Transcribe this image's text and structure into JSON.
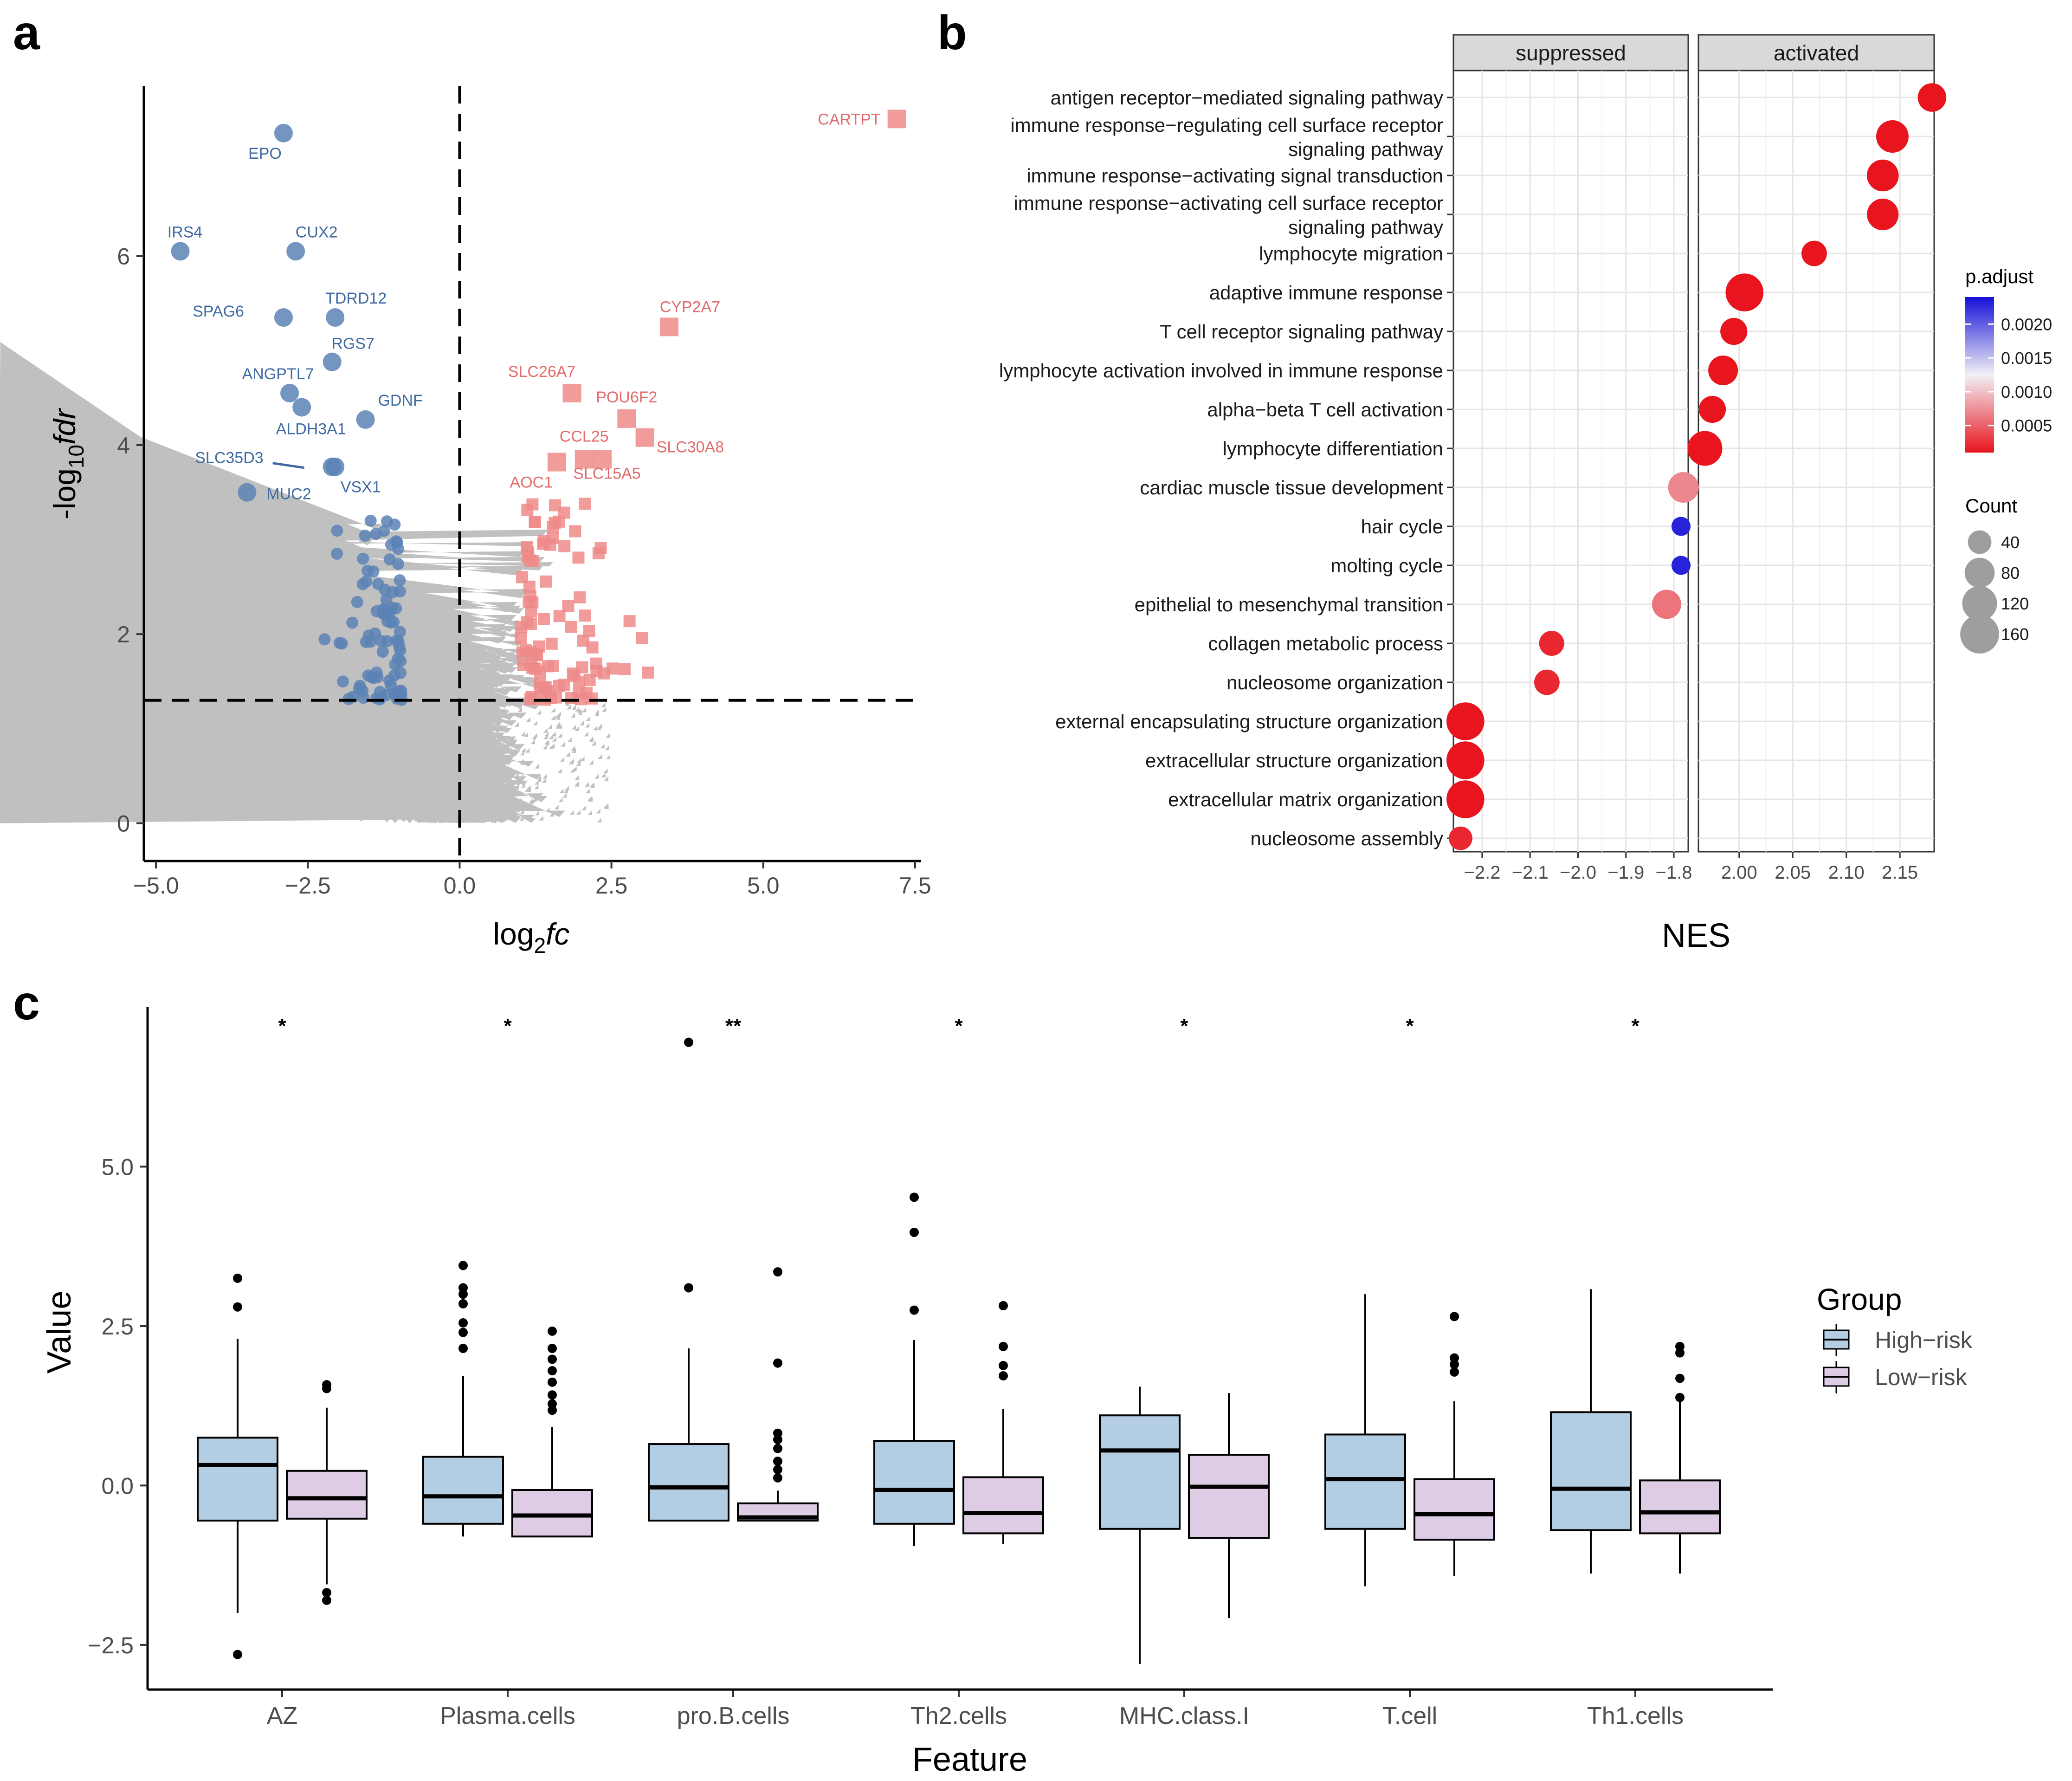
{
  "panels": {
    "a": "a",
    "b": "b",
    "c": "c"
  },
  "chart_data": [
    {
      "type": "scatter",
      "panel": "a",
      "title": "",
      "xlabel_base": "log",
      "xlabel_sub": "2",
      "xlabel_italic": "fc",
      "ylabel_prefix": "-log",
      "ylabel_sub": "10",
      "ylabel_italic": "fdr",
      "xlim": [
        -5.2,
        7.6
      ],
      "ylim": [
        -0.4,
        7.8
      ],
      "xticks": [
        -5.0,
        -2.5,
        0.0,
        2.5,
        5.0,
        7.5
      ],
      "xtick_labels": [
        "−5.0",
        "−2.5",
        "0.0",
        "2.5",
        "5.0",
        "7.5"
      ],
      "yticks": [
        0,
        2,
        4,
        6
      ],
      "ytick_labels": [
        "0",
        "2",
        "4",
        "6"
      ],
      "thresholds": {
        "fdr_line_y": 1.3,
        "fc_line_x": 0
      },
      "colors": {
        "down": "#5b83b5",
        "up": "#ef8a8a",
        "ns": "#c0c0c0"
      },
      "labeled_down": [
        {
          "label": "EPO",
          "x": -2.9,
          "y": 7.3
        },
        {
          "label": "IRS4",
          "x": -4.6,
          "y": 6.05
        },
        {
          "label": "CUX2",
          "x": -2.7,
          "y": 6.05
        },
        {
          "label": "SPAG6",
          "x": -2.9,
          "y": 5.35
        },
        {
          "label": "TDRD12",
          "x": -2.05,
          "y": 5.35
        },
        {
          "label": "RGS7",
          "x": -2.1,
          "y": 4.88
        },
        {
          "label": "ANGPTL7",
          "x": -2.8,
          "y": 4.55
        },
        {
          "label": "GDNF",
          "x": -1.55,
          "y": 4.27
        },
        {
          "label": "ALDH3A1",
          "x": -2.6,
          "y": 4.4
        },
        {
          "label": "SLC35D3",
          "x": -2.1,
          "y": 3.77
        },
        {
          "label": "VSX1",
          "x": -2.05,
          "y": 3.77
        },
        {
          "label": "MUC2",
          "x": -3.5,
          "y": 3.5
        }
      ],
      "labeled_up": [
        {
          "label": "CARTPT",
          "x": 7.2,
          "y": 7.45
        },
        {
          "label": "CYP2A7",
          "x": 3.45,
          "y": 5.25
        },
        {
          "label": "SLC26A7",
          "x": 1.85,
          "y": 4.55
        },
        {
          "label": "POU6F2",
          "x": 2.75,
          "y": 4.28
        },
        {
          "label": "CCL25",
          "x": 2.05,
          "y": 3.85
        },
        {
          "label": "SLC30A8",
          "x": 3.05,
          "y": 4.08
        },
        {
          "label": "AOC1",
          "x": 1.6,
          "y": 3.82
        },
        {
          "label": "SLC15A5",
          "x": 2.35,
          "y": 3.85
        }
      ]
    },
    {
      "type": "dot",
      "panel": "b",
      "xlabel": "NES",
      "facets": [
        {
          "name": "suppressed",
          "xlim": [
            -2.26,
            -1.77
          ],
          "ticks": [
            -2.2,
            -2.1,
            -2.0,
            -1.9,
            -1.8
          ],
          "tick_labels": [
            "−2.2",
            "−2.1",
            "−2.0",
            "−1.9",
            "−1.8"
          ]
        },
        {
          "name": "activated",
          "xlim": [
            1.962,
            2.182
          ],
          "ticks": [
            2.0,
            2.05,
            2.1,
            2.15
          ],
          "tick_labels": [
            "2.00",
            "2.05",
            "2.10",
            "2.15"
          ]
        }
      ],
      "terms": [
        {
          "label_lines": [
            "antigen receptor−mediated signaling pathway"
          ],
          "facet": "activated",
          "nes": 2.18,
          "count": 70,
          "padj": 0.0001
        },
        {
          "label_lines": [
            "immune response−regulating cell surface receptor",
            "signaling pathway"
          ],
          "facet": "activated",
          "nes": 2.143,
          "count": 100,
          "padj": 0.0001
        },
        {
          "label_lines": [
            "immune response−activating signal transduction"
          ],
          "facet": "activated",
          "nes": 2.134,
          "count": 95,
          "padj": 0.0001
        },
        {
          "label_lines": [
            "immune response−activating cell surface receptor",
            "signaling pathway"
          ],
          "facet": "activated",
          "nes": 2.134,
          "count": 93,
          "padj": 0.0001
        },
        {
          "label_lines": [
            "lymphocyte migration"
          ],
          "facet": "activated",
          "nes": 2.07,
          "count": 50,
          "padj": 0.0001
        },
        {
          "label_lines": [
            "adaptive immune response"
          ],
          "facet": "activated",
          "nes": 2.005,
          "count": 150,
          "padj": 0.0001
        },
        {
          "label_lines": [
            "T cell receptor signaling pathway"
          ],
          "facet": "activated",
          "nes": 1.995,
          "count": 60,
          "padj": 0.0001
        },
        {
          "label_lines": [
            "lymphocyte activation involved in immune response"
          ],
          "facet": "activated",
          "nes": 1.985,
          "count": 78,
          "padj": 0.0001
        },
        {
          "label_lines": [
            "alpha−beta T cell activation"
          ],
          "facet": "activated",
          "nes": 1.975,
          "count": 60,
          "padj": 0.0001
        },
        {
          "label_lines": [
            "lymphocyte differentiation"
          ],
          "facet": "activated",
          "nes": 1.968,
          "count": 120,
          "padj": 0.0001
        },
        {
          "label_lines": [
            "cardiac muscle tissue development"
          ],
          "facet": "suppressed",
          "nes": -1.78,
          "count": 85,
          "padj": 0.0007
        },
        {
          "label_lines": [
            "hair cycle"
          ],
          "facet": "suppressed",
          "nes": -1.785,
          "count": 20,
          "padj": 0.0023
        },
        {
          "label_lines": [
            "molting cycle"
          ],
          "facet": "suppressed",
          "nes": -1.785,
          "count": 20,
          "padj": 0.0023
        },
        {
          "label_lines": [
            "epithelial to mesenchymal transition"
          ],
          "facet": "suppressed",
          "nes": -1.815,
          "count": 75,
          "padj": 0.0006
        },
        {
          "label_lines": [
            "collagen metabolic process"
          ],
          "facet": "suppressed",
          "nes": -2.055,
          "count": 48,
          "padj": 0.0002
        },
        {
          "label_lines": [
            "nucleosome organization"
          ],
          "facet": "suppressed",
          "nes": -2.065,
          "count": 50,
          "padj": 0.0002
        },
        {
          "label_lines": [
            "external encapsulating structure organization"
          ],
          "facet": "suppressed",
          "nes": -2.235,
          "count": 150,
          "padj": 0.0001
        },
        {
          "label_lines": [
            "extracellular structure organization"
          ],
          "facet": "suppressed",
          "nes": -2.235,
          "count": 150,
          "padj": 0.0001
        },
        {
          "label_lines": [
            "extracellular matrix organization"
          ],
          "facet": "suppressed",
          "nes": -2.235,
          "count": 150,
          "padj": 0.0001
        },
        {
          "label_lines": [
            "nucleosome assembly"
          ],
          "facet": "suppressed",
          "nes": -2.245,
          "count": 40,
          "padj": 0.0002
        }
      ],
      "legend_padj": {
        "title": "p.adjust",
        "min": 0.0001,
        "max": 0.0024,
        "ticks": [
          0.002,
          0.0015,
          0.001,
          0.0005
        ],
        "tick_labels": [
          "0.0020",
          "0.0015",
          "0.0010",
          "0.0005"
        ],
        "low_color": "#e8141e",
        "high_color": "#1510d8"
      },
      "legend_count": {
        "title": "Count",
        "values": [
          40,
          80,
          120,
          160
        ],
        "labels": [
          "40",
          "80",
          "120",
          "160"
        ]
      }
    },
    {
      "type": "box",
      "panel": "c",
      "xlabel": "Feature",
      "ylabel": "Value",
      "ylim": [
        -3.2,
        7.5
      ],
      "yticks": [
        -2.5,
        0.0,
        2.5,
        5.0
      ],
      "ytick_labels": [
        "−2.5",
        "0.0",
        "2.5",
        "5.0"
      ],
      "categories": [
        "AZ",
        "Plasma.cells",
        "pro.B.cells",
        "Th2.cells",
        "MHC.class.I",
        "T.cell",
        "Th1.cells"
      ],
      "significance": [
        "*",
        "*",
        "**",
        "*",
        "*",
        "*",
        "*"
      ],
      "legend": {
        "title": "Group",
        "entries": [
          "High−risk",
          "Low−risk"
        ]
      },
      "colors": {
        "High−risk": "#b3cde3",
        "Low−risk": "#decbe4"
      },
      "series": [
        {
          "name": "High−risk",
          "boxes": [
            {
              "min": -2.0,
              "q1": -0.55,
              "median": 0.32,
              "q3": 0.75,
              "max": 2.3,
              "outliers": [
                3.25,
                2.8,
                -2.65
              ]
            },
            {
              "min": -0.8,
              "q1": -0.6,
              "median": -0.17,
              "q3": 0.45,
              "max": 1.72,
              "outliers": [
                3.45,
                3.1,
                3.0,
                2.85,
                2.55,
                2.4,
                2.15
              ]
            },
            {
              "min": -0.55,
              "q1": -0.55,
              "median": -0.03,
              "q3": 0.65,
              "max": 2.15,
              "outliers": [
                6.95,
                3.1
              ]
            },
            {
              "min": -0.95,
              "q1": -0.6,
              "median": -0.07,
              "q3": 0.7,
              "max": 2.28,
              "outliers": [
                4.52,
                3.97,
                2.75
              ]
            },
            {
              "min": -2.8,
              "q1": -0.68,
              "median": 0.55,
              "q3": 1.1,
              "max": 1.55,
              "outliers": []
            },
            {
              "min": -1.58,
              "q1": -0.68,
              "median": 0.1,
              "q3": 0.8,
              "max": 3.0,
              "outliers": []
            },
            {
              "min": -1.38,
              "q1": -0.7,
              "median": -0.05,
              "q3": 1.15,
              "max": 3.08,
              "outliers": []
            }
          ]
        },
        {
          "name": "Low−risk",
          "boxes": [
            {
              "min": -1.55,
              "q1": -0.52,
              "median": -0.2,
              "q3": 0.23,
              "max": 1.22,
              "outliers": [
                1.58,
                1.52,
                -1.68,
                -1.8
              ]
            },
            {
              "min": -0.8,
              "q1": -0.8,
              "median": -0.47,
              "q3": -0.07,
              "max": 0.92,
              "outliers": [
                2.42,
                2.15,
                1.98,
                1.8,
                1.62,
                1.42,
                1.28,
                1.18
              ]
            },
            {
              "min": -0.55,
              "q1": -0.55,
              "median": -0.5,
              "q3": -0.28,
              "max": -0.08,
              "outliers": [
                3.35,
                1.92,
                0.82,
                0.72,
                0.58,
                0.38,
                0.25,
                0.12
              ]
            },
            {
              "min": -0.92,
              "q1": -0.75,
              "median": -0.43,
              "q3": 0.13,
              "max": 1.2,
              "outliers": [
                2.82,
                2.18,
                1.88,
                1.72
              ]
            },
            {
              "min": -2.08,
              "q1": -0.82,
              "median": -0.02,
              "q3": 0.48,
              "max": 1.45,
              "outliers": []
            },
            {
              "min": -1.42,
              "q1": -0.85,
              "median": -0.45,
              "q3": 0.1,
              "max": 1.32,
              "outliers": [
                2.65,
                2.0,
                1.9,
                1.78
              ]
            },
            {
              "min": -1.38,
              "q1": -0.75,
              "median": -0.42,
              "q3": 0.08,
              "max": 1.32,
              "outliers": [
                2.18,
                2.08,
                1.68,
                1.38
              ]
            }
          ]
        }
      ]
    }
  ]
}
